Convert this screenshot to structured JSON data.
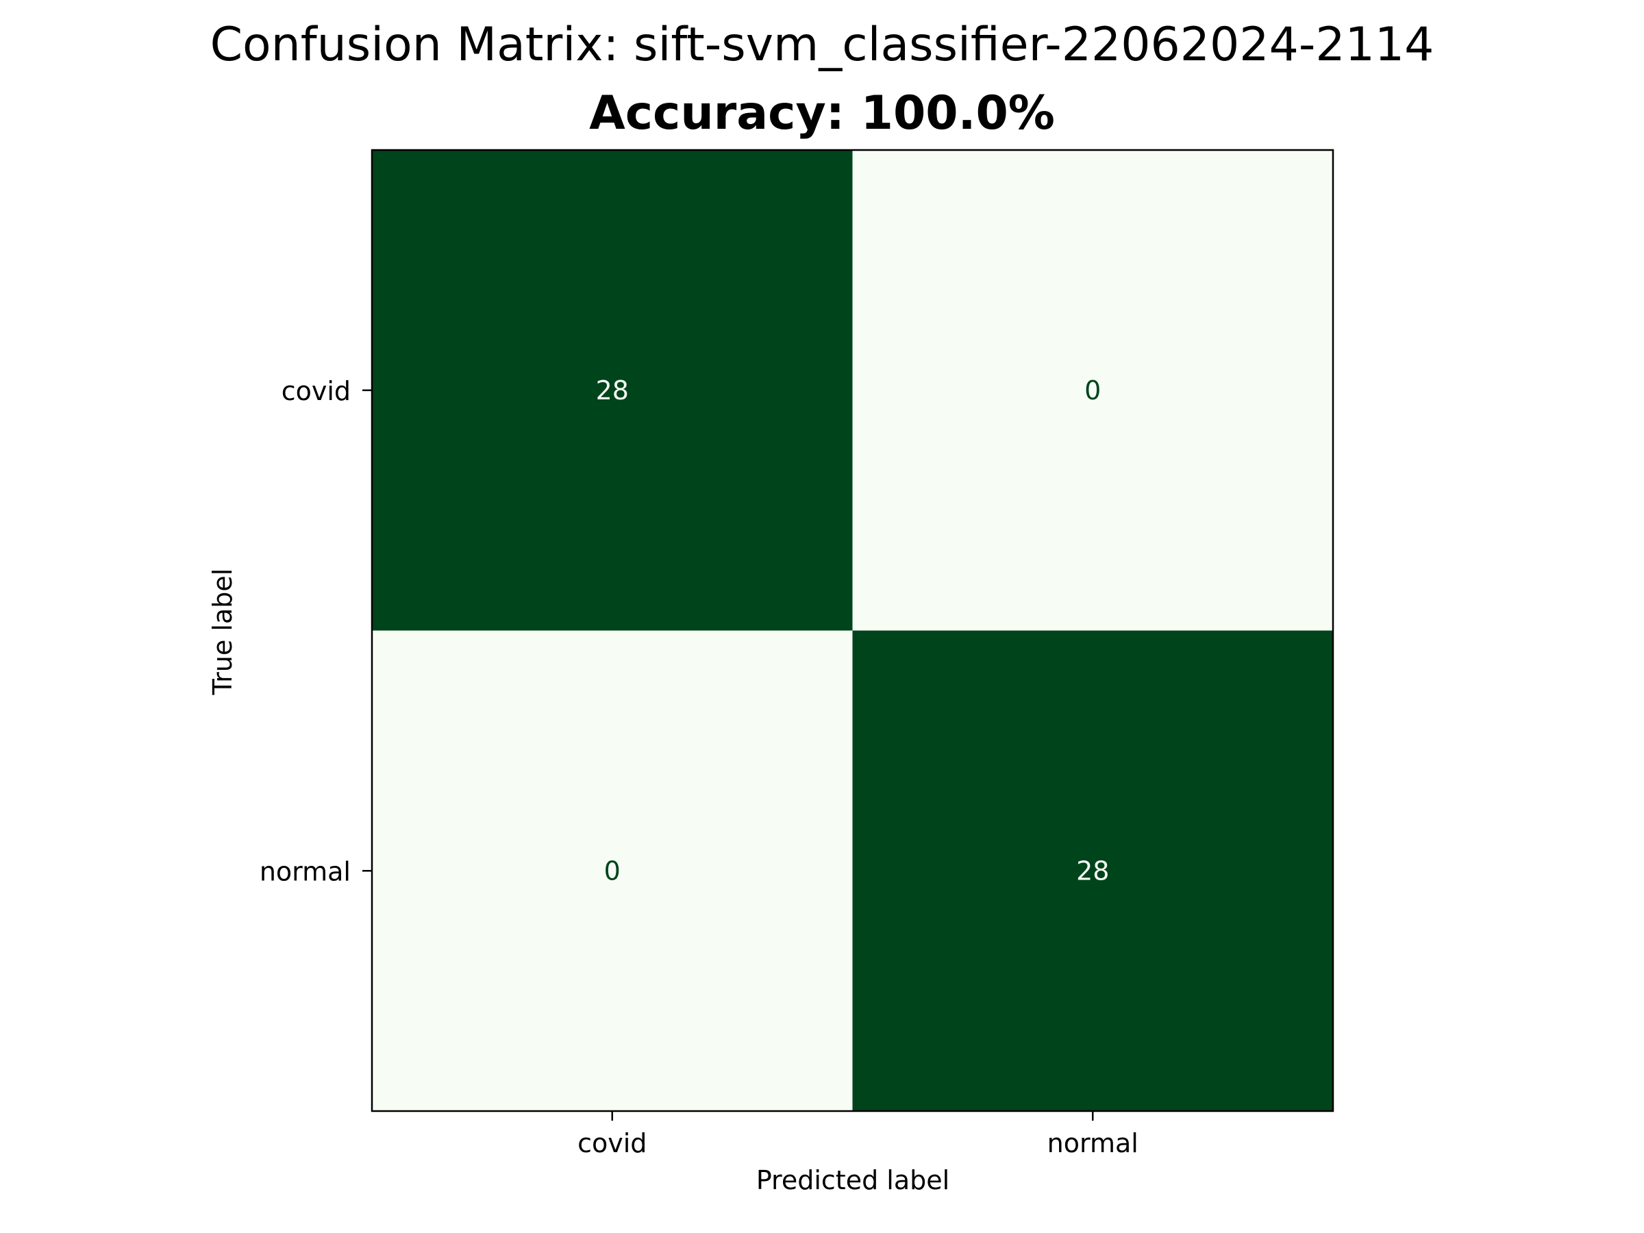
{
  "chart_data": {
    "type": "heatmap",
    "title": "Confusion Matrix: sift-svm_classifier-22062024-2114",
    "subtitle": "Accuracy: 100.0%",
    "xlabel": "Predicted label",
    "ylabel": "True label",
    "x_categories": [
      "covid",
      "normal"
    ],
    "y_categories": [
      "covid",
      "normal"
    ],
    "matrix": [
      [
        28,
        0
      ],
      [
        0,
        28
      ]
    ],
    "value_range": [
      0,
      28
    ],
    "colormap": "Greens",
    "colors": {
      "low": "#f7fcf5",
      "high": "#00441b",
      "text_on_dark": "#f7fcf5",
      "text_on_light": "#00441b"
    },
    "grid": false,
    "legend": "none"
  }
}
